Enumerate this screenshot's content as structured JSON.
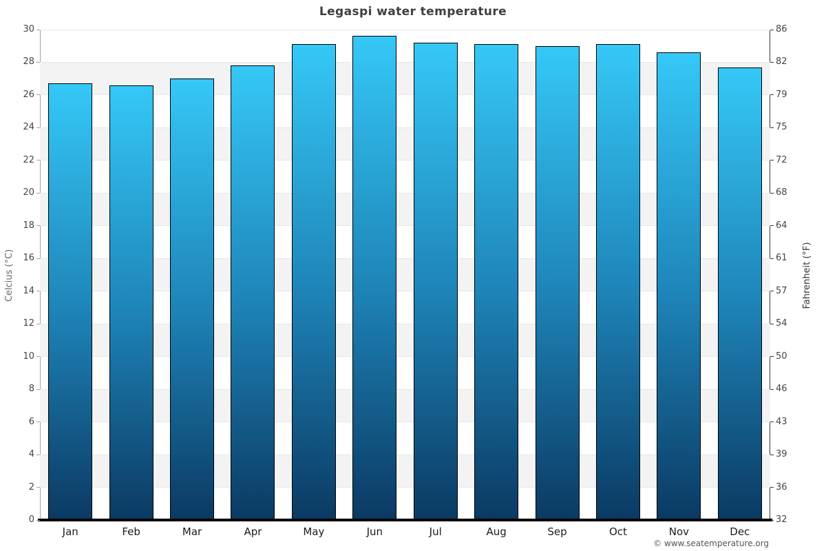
{
  "chart": {
    "title": "Legaspi water temperature",
    "footer": "© www.seatemperature.org",
    "y_axis_left": {
      "label": "Celcius (°C)"
    },
    "y_axis_right": {
      "label": "Fahrenheit (°F)"
    }
  },
  "chart_data": {
    "type": "bar",
    "title": "Legaspi water temperature",
    "categories": [
      "Jan",
      "Feb",
      "Mar",
      "Apr",
      "May",
      "Jun",
      "Jul",
      "Aug",
      "Sep",
      "Oct",
      "Nov",
      "Dec"
    ],
    "values": [
      26.7,
      26.6,
      27.0,
      27.8,
      29.1,
      29.6,
      29.2,
      29.1,
      29.0,
      29.1,
      28.6,
      27.7
    ],
    "xlabel": "",
    "ylabel_left": "Celcius (°C)",
    "ylabel_right": "Fahrenheit (°F)",
    "ylim": [
      0,
      30
    ],
    "yticks_left": [
      0,
      2,
      4,
      6,
      8,
      10,
      12,
      14,
      16,
      18,
      20,
      22,
      24,
      26,
      28,
      30
    ],
    "yticks_right_labels": [
      "32",
      "36",
      "39",
      "43",
      "46",
      "50",
      "54",
      "57",
      "61",
      "64",
      "68",
      "72",
      "75",
      "79",
      "82",
      "86"
    ],
    "legend": false,
    "grid": "horizontal, every 2°C, with alternating shaded bands",
    "colors": {
      "bar_gradient_top": "#35c8f7",
      "bar_gradient_mid": "#1e84b8",
      "bar_gradient_bottom": "#0b3a63",
      "bar_border": "#000000",
      "band_gray": "#f3f3f3",
      "gridline": "#e7e7e7",
      "baseline": "#000000",
      "title_text": "#3f3f3f",
      "tick_text": "#444444",
      "axis_label_left": "#666666",
      "axis_label_right": "#333333",
      "footer_text": "#555555"
    }
  }
}
